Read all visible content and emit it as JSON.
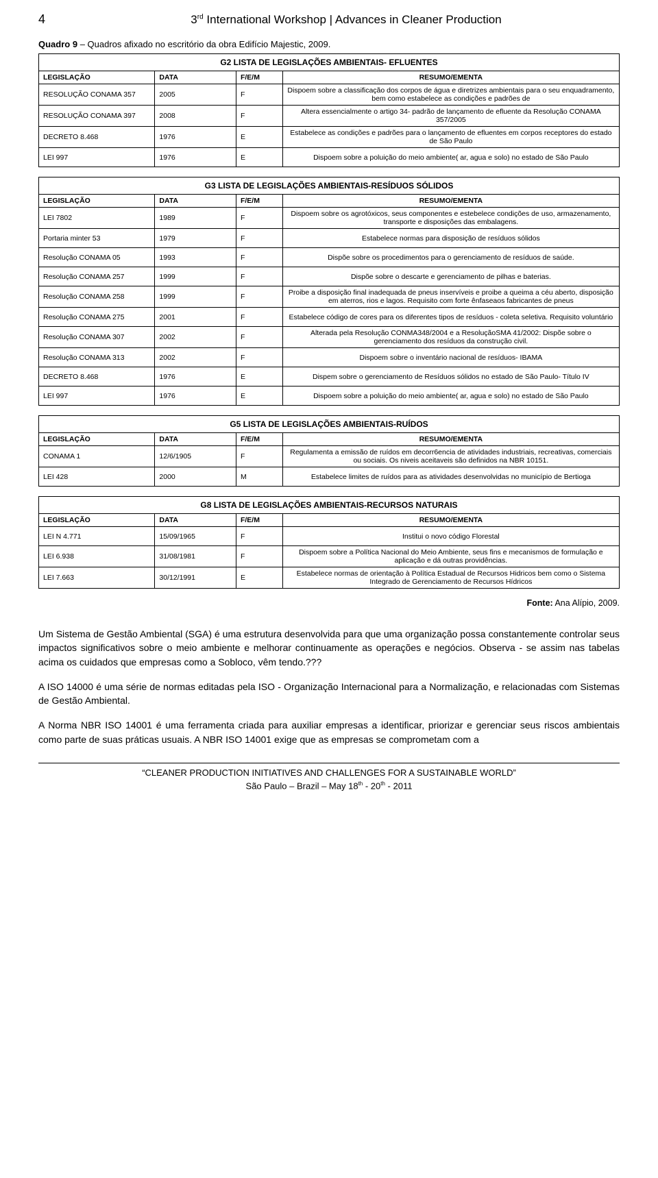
{
  "page_number": "4",
  "header_title_html": "3<sup>rd</sup> International Workshop | Advances in Cleaner Production",
  "quadro_caption_bold": "Quadro 9",
  "quadro_caption_rest": " – Quadros afixado no escritório da obra Edifício Majestic, 2009.",
  "tables": [
    {
      "title": "G2 LISTA DE LEGISLAÇÕES AMBIENTAIS- EFLUENTES",
      "columns": [
        "LEGISLAÇÃO",
        "DATA",
        "F/E/M",
        "RESUMO/EMENTA"
      ],
      "rows": [
        [
          "RESOLUÇÃO CONAMA 357",
          "2005",
          "F",
          "Dispoem sobre a classificação dos corpos de água e diretrizes ambientais para o seu enquadramento, bem como estabelece as condições e padrões de"
        ],
        [
          "RESOLUÇÃO CONAMA 397",
          "2008",
          "F",
          "Altera essencialmente o artigo 34- padrão de lançamento de efluente da Resolução CONAMA 357/2005"
        ],
        [
          "DECRETO 8.468",
          "1976",
          "E",
          "Estabelece as condições e padrões para o lançamento de efluentes em corpos receptores do estado de São Paulo"
        ],
        [
          "LEI 997",
          "1976",
          "E",
          "Dispoem sobre a poluição do meio ambiente( ar, agua e solo) no estado de São Paulo"
        ]
      ]
    },
    {
      "title": "G3 LISTA DE LEGISLAÇÕES AMBIENTAIS-RESÍDUOS SÓLIDOS",
      "columns": [
        "LEGISLAÇÃO",
        "DATA",
        "F/E/M",
        "RESUMO/EMENTA"
      ],
      "rows": [
        [
          "LEI 7802",
          "1989",
          "F",
          "Dispoem sobre os agrotóxicos, seus componentes e estebelece condições de uso, armazenamento, transporte e disposições das embalagens."
        ],
        [
          "Portaria minter 53",
          "1979",
          "F",
          "Estabelece normas para disposição de resíduos sólidos"
        ],
        [
          "Resolução CONAMA 05",
          "1993",
          "F",
          "Dispõe sobre os procedimentos para o gerenciamento de resíduos de saúde."
        ],
        [
          "Resolução CONAMA 257",
          "1999",
          "F",
          "Dispõe sobre o descarte e gerenciamento de pilhas e baterias."
        ],
        [
          "Resolução CONAMA 258",
          "1999",
          "F",
          "Proibe a disposição final inadequada de pneus inservíveis e proibe a queima a céu aberto, disposição em aterros, rios e lagos. Requisito com forte ênfaseaos fabricantes de pneus"
        ],
        [
          "Resolução CONAMA 275",
          "2001",
          "F",
          "Estabelece código de cores para os diferentes tipos de resíduos - coleta seletiva. Requisito voluntário"
        ],
        [
          "Resolução CONAMA 307",
          "2002",
          "F",
          "Alterada pela Resolução CONMA348/2004 e a ResoluçãoSMA 41/2002: Dispõe sobre o gerenciamento dos resíduos da construção civil."
        ],
        [
          "Resolução CONAMA 313",
          "2002",
          "F",
          "Dispoem sobre o inventário nacional de resíduos- IBAMA"
        ],
        [
          "DECRETO 8.468",
          "1976",
          "E",
          "Dispem sobre o gerenciamento de Resíduos sólidos no estado de São Paulo- Título IV"
        ],
        [
          "LEI 997",
          "1976",
          "E",
          "Dispoem sobre a poluição do meio ambiente( ar, agua e solo) no estado de São Paulo"
        ]
      ]
    },
    {
      "title": "G5 LISTA DE LEGISLAÇÕES AMBIENTAIS-RUÍDOS",
      "columns": [
        "LEGISLAÇÃO",
        "DATA",
        "F/E/M",
        "RESUMO/EMENTA"
      ],
      "rows": [
        [
          "CONAMA 1",
          "12/6/1905",
          "F",
          "Regulamenta a emissão de ruídos em decorr6encia de atividades industriais, recreativas, comerciais ou sociais. Os niveis aceitaveis são definidos na NBR 10151."
        ],
        [
          "LEI 428",
          "2000",
          "M",
          "Estabelece limites de ruídos para as atividades desenvolvidas no município de Bertioga"
        ]
      ]
    },
    {
      "title": "G8  LISTA DE LEGISLAÇÕES AMBIENTAIS-RECURSOS NATURAIS",
      "columns": [
        "LEGISLAÇÃO",
        "DATA",
        "F/E/M",
        "RESUMO/EMENTA"
      ],
      "rows": [
        [
          "LEI N 4.771",
          "15/09/1965",
          "F",
          "Institui o novo código Florestal"
        ],
        [
          "LEI 6.938",
          "31/08/1981",
          "F",
          "Dispoem sobre a Política Nacional do Meio Ambiente, seus fins e mecanismos de formulação e aplicação e dá outras providências."
        ],
        [
          "LEI 7.663",
          "30/12/1991",
          "E",
          "Estabelece normas de orientação à Política Estadual de Recursos Hidricos bem como o Sistema Integrado de Gerenciamento de Recursos Hídricos"
        ]
      ]
    }
  ],
  "fonte_label": "Fonte:",
  "fonte_text": " Ana Alípio, 2009.",
  "paragraphs": [
    "Um Sistema de Gestão Ambiental (SGA) é uma estrutura desenvolvida para que uma organização possa constantemente controlar seus impactos significativos sobre o meio ambiente e melhorar continuamente as operações e negócios. Observa - se assim nas tabelas acima os cuidados que empresas como a Sobloco, vêm tendo.???",
    "A ISO 14000 é uma série de normas editadas pela ISO - Organização Internacional para a Normalização, e relacionadas com Sistemas de Gestão Ambiental.",
    "A Norma NBR ISO 14001 é uma ferramenta criada para auxiliar empresas a identificar, priorizar e gerenciar seus riscos ambientais como parte de suas práticas usuais.  A NBR ISO 14001 exige que as empresas se comprometam com a"
  ],
  "footer_line1": "“CLEANER PRODUCTION INITIATIVES AND CHALLENGES FOR A SUSTAINABLE WORLD”",
  "footer_line2_html": "São Paulo – Brazil – May 18<sup>th</sup> - 20<sup>th</sup>  -  2011"
}
